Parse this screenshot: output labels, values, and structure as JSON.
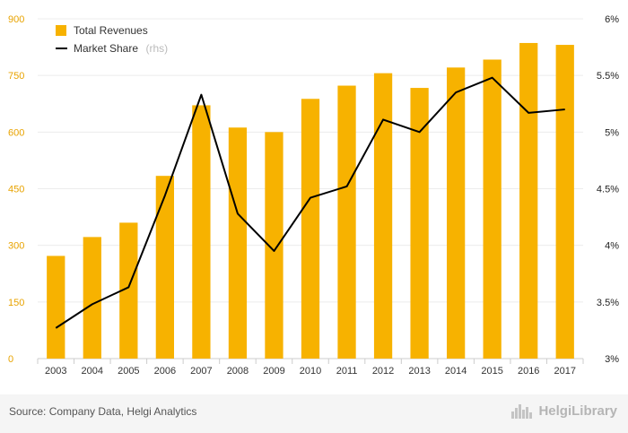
{
  "chart_data": {
    "type": "bar+line",
    "categories": [
      "2003",
      "2004",
      "2005",
      "2006",
      "2007",
      "2008",
      "2009",
      "2010",
      "2011",
      "2012",
      "2013",
      "2014",
      "2015",
      "2016",
      "2017"
    ],
    "series": [
      {
        "name": "Total Revenues",
        "type": "bar",
        "axis": "left",
        "color": "#f7b200",
        "values": [
          272,
          322,
          360,
          484,
          671,
          612,
          600,
          688,
          723,
          756,
          717,
          771,
          792,
          836,
          831
        ]
      },
      {
        "name": "Market Share",
        "name_suffix": "(rhs)",
        "type": "line",
        "axis": "right",
        "color": "#000000",
        "values": [
          3.27,
          3.48,
          3.63,
          4.44,
          5.33,
          4.28,
          3.95,
          4.42,
          4.52,
          5.11,
          5.0,
          5.35,
          5.48,
          5.17,
          5.2
        ]
      }
    ],
    "y_left": {
      "min": 0,
      "max": 900,
      "ticks": [
        "0",
        "150",
        "300",
        "450",
        "600",
        "750",
        "900"
      ]
    },
    "y_right": {
      "min": 3,
      "max": 6,
      "ticks": [
        "3%",
        "3.5%",
        "4%",
        "4.5%",
        "5%",
        "5.5%",
        "6%"
      ]
    },
    "grid": true,
    "legend_position": "top-left"
  },
  "footer": {
    "source": "Source: Company Data, Helgi Analytics",
    "logo_text": "HelgiLibrary"
  }
}
